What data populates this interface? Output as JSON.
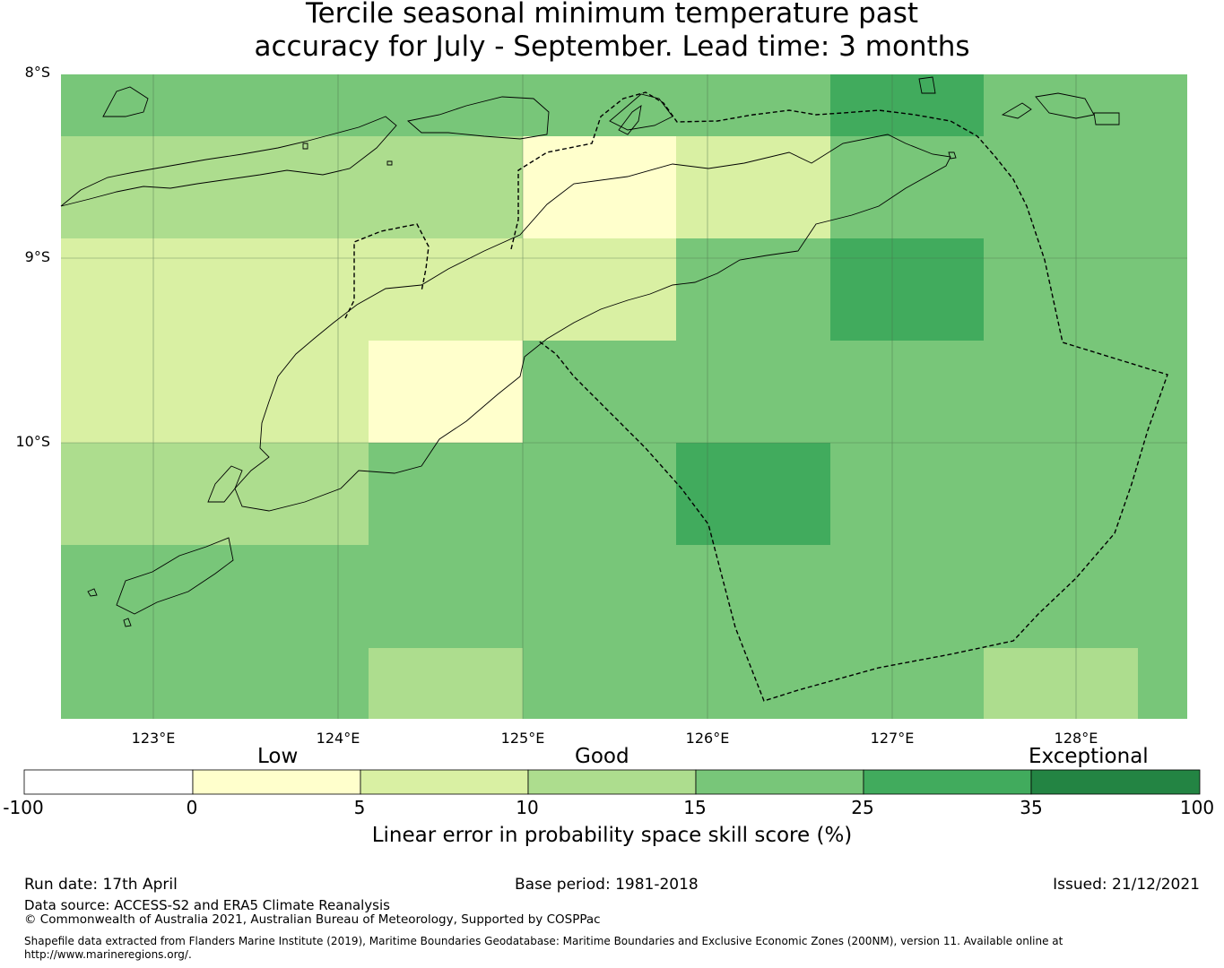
{
  "title_line1": "Tercile seasonal minimum temperature past",
  "title_line2": "accuracy for July - September. Lead time: 3 months",
  "map": {
    "lat_labels": [
      "8°S",
      "9°S",
      "10°S"
    ],
    "lon_labels": [
      "123°E",
      "124°E",
      "125°E",
      "126°E",
      "127°E",
      "128°E"
    ],
    "lon_range": [
      122.5,
      128.6
    ],
    "lat_range": [
      -11.5,
      -8.0
    ],
    "cell_size_deg": [
      0.833,
      0.555
    ],
    "grid_rows_colors": [
      [
        "#78c679",
        "#78c679",
        "#78c679",
        "#78c679",
        "#78c679",
        "#41ab5d",
        "#78c679",
        "#78c679"
      ],
      [
        "#addd8e",
        "#addd8e",
        "#addd8e",
        "#ffffcc",
        "#d9f0a3",
        "#78c679",
        "#78c679",
        "#78c679"
      ],
      [
        "#d9f0a3",
        "#d9f0a3",
        "#d9f0a3",
        "#d9f0a3",
        "#78c679",
        "#41ab5d",
        "#78c679",
        "#78c679"
      ],
      [
        "#d9f0a3",
        "#d9f0a3",
        "#ffffcc",
        "#78c679",
        "#78c679",
        "#78c679",
        "#78c679",
        "#78c679"
      ],
      [
        "#addd8e",
        "#addd8e",
        "#78c679",
        "#78c679",
        "#41ab5d",
        "#78c679",
        "#78c679",
        "#78c679"
      ],
      [
        "#78c679",
        "#78c679",
        "#78c679",
        "#78c679",
        "#78c679",
        "#78c679",
        "#78c679",
        "#78c679"
      ],
      [
        "#78c679",
        "#78c679",
        "#addd8e",
        "#78c679",
        "#78c679",
        "#78c679",
        "#addd8e",
        "#78c679"
      ]
    ]
  },
  "colorbar": {
    "categories": [
      "Low",
      "Good",
      "Exceptional"
    ],
    "ticks": [
      "-100",
      "0",
      "5",
      "10",
      "15",
      "25",
      "35",
      "100"
    ],
    "colors": [
      "#ffffff",
      "#ffffcc",
      "#d9f0a3",
      "#addd8e",
      "#78c679",
      "#41ab5d",
      "#238443"
    ],
    "label": "Linear error in probability space skill score (%)"
  },
  "footer": {
    "run_date": "Run date: 17th April",
    "base_period": "Base period: 1981-2018",
    "issued": "Issued: 21/12/2021",
    "data_source": "Data source: ACCESS-S2 and ERA5 Climate Reanalysis",
    "copyright": "© Commonwealth of Australia 2021, Australian Bureau of Meteorology, Supported by COSPPac",
    "shapefile_line1": "Shapefile data extracted from Flanders Marine Institute (2019), Maritime Boundaries Geodatabase: Maritime Boundaries and Exclusive Economic Zones (200NM), version 11. Available online at",
    "shapefile_line2": "http://www.marineregions.org/."
  }
}
